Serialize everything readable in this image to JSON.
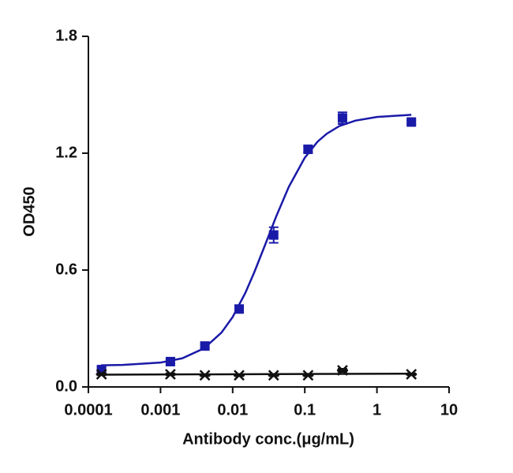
{
  "chart_data": {
    "type": "scatter",
    "x_label": "Antibody conc.(μg/mL)",
    "y_label": "OD450",
    "xscale": "log",
    "xlim": [
      0.0001,
      10
    ],
    "xticks": [
      0.0001,
      0.001,
      0.01,
      0.1,
      1,
      10
    ],
    "ylim": [
      0,
      1.8
    ],
    "yticks": [
      {
        "value": 0,
        "label": "0.0"
      },
      0.6,
      1.2,
      1.8
    ],
    "grid": false,
    "series": [
      {
        "color": "#1a1aa8",
        "marker": "square",
        "x": [
          0.000152,
          0.00137,
          0.00412,
          0.0123,
          0.037,
          0.111,
          0.333,
          3
        ],
        "values": [
          0.089,
          0.13,
          0.21,
          0.4,
          0.78,
          1.22,
          1.38,
          1.36
        ],
        "errors": [
          0.01,
          0.01,
          0.01,
          0.01,
          0.04,
          0.015,
          0.03,
          0.01
        ],
        "curve_x": [
          0.00015,
          0.0003,
          0.001,
          0.002,
          0.004,
          0.007,
          0.01,
          0.015,
          0.02,
          0.03,
          0.04,
          0.06,
          0.1,
          0.15,
          0.2,
          0.3,
          0.5,
          1,
          3
        ],
        "curve_values": [
          0.111,
          0.113,
          0.125,
          0.147,
          0.198,
          0.279,
          0.359,
          0.483,
          0.59,
          0.755,
          0.874,
          1.027,
          1.177,
          1.259,
          1.299,
          1.339,
          1.367,
          1.386,
          1.397
        ]
      },
      {
        "color": "#111111",
        "marker": "asterisk",
        "x": [
          0.000152,
          0.00137,
          0.00412,
          0.0123,
          0.037,
          0.111,
          0.333,
          3
        ],
        "values": [
          0.065,
          0.065,
          0.06,
          0.06,
          0.06,
          0.06,
          0.085,
          0.065
        ],
        "errors": [
          0.005,
          0.005,
          0.005,
          0.005,
          0.005,
          0.005,
          0.008,
          0.005
        ],
        "curve_x": [
          0.00015,
          3
        ],
        "curve_values": [
          0.063,
          0.068
        ]
      }
    ]
  }
}
